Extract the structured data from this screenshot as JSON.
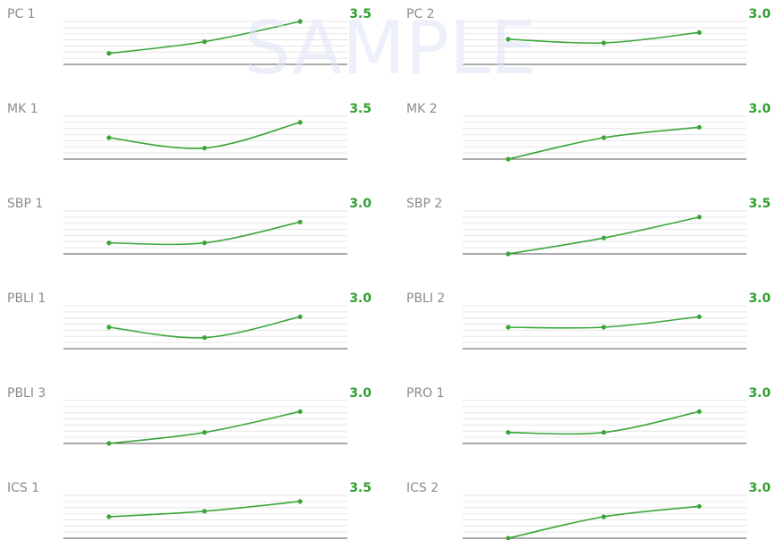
{
  "watermark": "SAMPLE",
  "colors": {
    "line": "#3aa63a",
    "value": "#2fa02f",
    "label": "#8c8c8c",
    "axis": "#555555",
    "grid": "#e6e6e6"
  },
  "chart_data": [
    {
      "type": "line",
      "title": "PC 1",
      "value_label": "3.5",
      "x": [
        1,
        2,
        3
      ],
      "y": [
        0.9,
        1.85,
        3.5
      ],
      "ylim": [
        0,
        3.5
      ]
    },
    {
      "type": "line",
      "title": "PC 2",
      "value_label": "3.0",
      "x": [
        1,
        2,
        3
      ],
      "y": [
        2.05,
        1.75,
        2.6
      ],
      "ylim": [
        0,
        3.5
      ]
    },
    {
      "type": "line",
      "title": "MK 1",
      "value_label": "3.5",
      "x": [
        1,
        2,
        3
      ],
      "y": [
        1.75,
        0.9,
        3.0
      ],
      "ylim": [
        0,
        3.5
      ]
    },
    {
      "type": "line",
      "title": "MK 2",
      "value_label": "3.0",
      "x": [
        1,
        2,
        3
      ],
      "y": [
        0.0,
        1.75,
        2.6
      ],
      "ylim": [
        0,
        3.5
      ]
    },
    {
      "type": "line",
      "title": "SBP 1",
      "value_label": "3.0",
      "x": [
        1,
        2,
        3
      ],
      "y": [
        0.9,
        0.9,
        2.6
      ],
      "ylim": [
        0,
        3.5
      ]
    },
    {
      "type": "line",
      "title": "SBP 2",
      "value_label": "3.5",
      "x": [
        1,
        2,
        3
      ],
      "y": [
        0.0,
        1.3,
        3.0
      ],
      "ylim": [
        0,
        3.5
      ]
    },
    {
      "type": "line",
      "title": "PBLI 1",
      "value_label": "3.0",
      "x": [
        1,
        2,
        3
      ],
      "y": [
        1.75,
        0.9,
        2.6
      ],
      "ylim": [
        0,
        3.5
      ]
    },
    {
      "type": "line",
      "title": "PBLI 2",
      "value_label": "3.0",
      "x": [
        1,
        2,
        3
      ],
      "y": [
        1.75,
        1.75,
        2.6
      ],
      "ylim": [
        0,
        3.5
      ]
    },
    {
      "type": "line",
      "title": "PBLI 3",
      "value_label": "3.0",
      "x": [
        1,
        2,
        3
      ],
      "y": [
        0.0,
        0.9,
        2.6
      ],
      "ylim": [
        0,
        3.5
      ]
    },
    {
      "type": "line",
      "title": "PRO 1",
      "value_label": "3.0",
      "x": [
        1,
        2,
        3
      ],
      "y": [
        0.9,
        0.9,
        2.6
      ],
      "ylim": [
        0,
        3.5
      ]
    },
    {
      "type": "line",
      "title": "ICS 1",
      "value_label": "3.5",
      "x": [
        1,
        2,
        3
      ],
      "y": [
        1.75,
        2.2,
        3.0
      ],
      "ylim": [
        0,
        3.5
      ]
    },
    {
      "type": "line",
      "title": "ICS 2",
      "value_label": "3.0",
      "x": [
        1,
        2,
        3
      ],
      "y": [
        0.0,
        1.75,
        2.6
      ],
      "ylim": [
        0,
        3.5
      ]
    }
  ]
}
